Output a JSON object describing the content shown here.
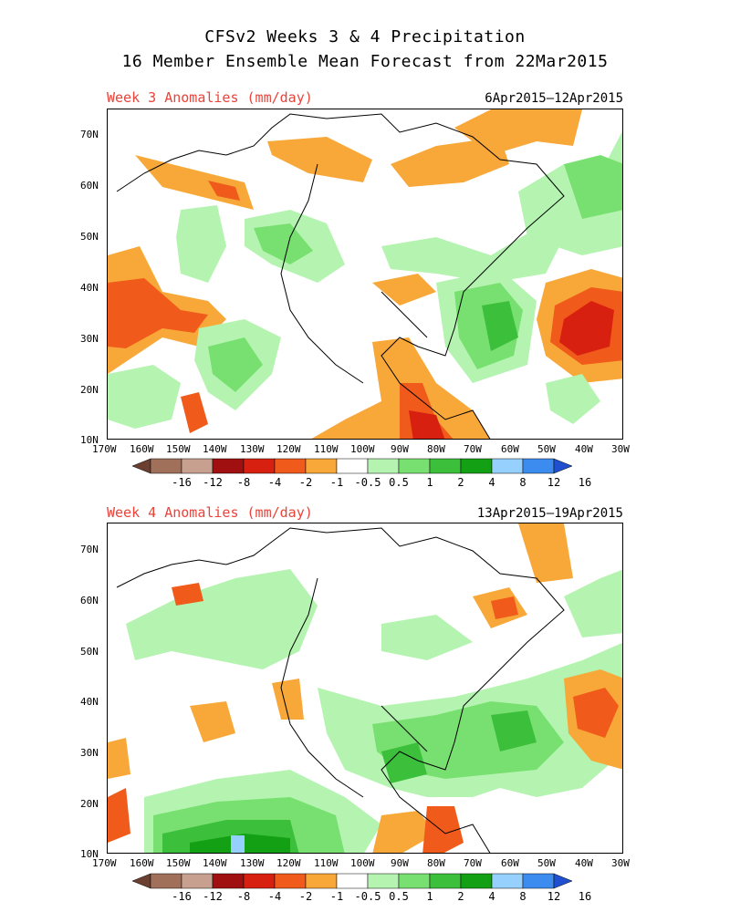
{
  "title_line1": "CFSv2 Weeks 3 & 4 Precipitation",
  "title_line2": "16 Member Ensemble Mean Forecast from 22Mar2015",
  "panels": [
    {
      "label": "Week 3 Anomalies (mm/day)",
      "dates": "6Apr2015–12Apr2015"
    },
    {
      "label": "Week 4 Anomalies (mm/day)",
      "dates": "13Apr2015–19Apr2015"
    }
  ],
  "lat_labels": [
    "70N",
    "60N",
    "50N",
    "40N",
    "30N",
    "20N",
    "10N"
  ],
  "lon_labels": [
    "170W",
    "160W",
    "150W",
    "140W",
    "130W",
    "120W",
    "110W",
    "100W",
    "90W",
    "80W",
    "70W",
    "60W",
    "50W",
    "40W",
    "30W"
  ],
  "colorbar": {
    "labels": [
      "-16",
      "-12",
      "-8",
      "-4",
      "-2",
      "-1",
      "-0.5",
      "0.5",
      "1",
      "2",
      "4",
      "8",
      "12",
      "16"
    ],
    "colors": [
      "#6b4030",
      "#a0705a",
      "#c8a090",
      "#a01010",
      "#d82010",
      "#f05a1a",
      "#f8a838",
      "#ffffff",
      "#b4f4b0",
      "#78e070",
      "#3cc03c",
      "#14a014",
      "#96d0ff",
      "#3c8cf0",
      "#2050d0"
    ]
  },
  "colors": {
    "label_red": "#e8443a"
  }
}
